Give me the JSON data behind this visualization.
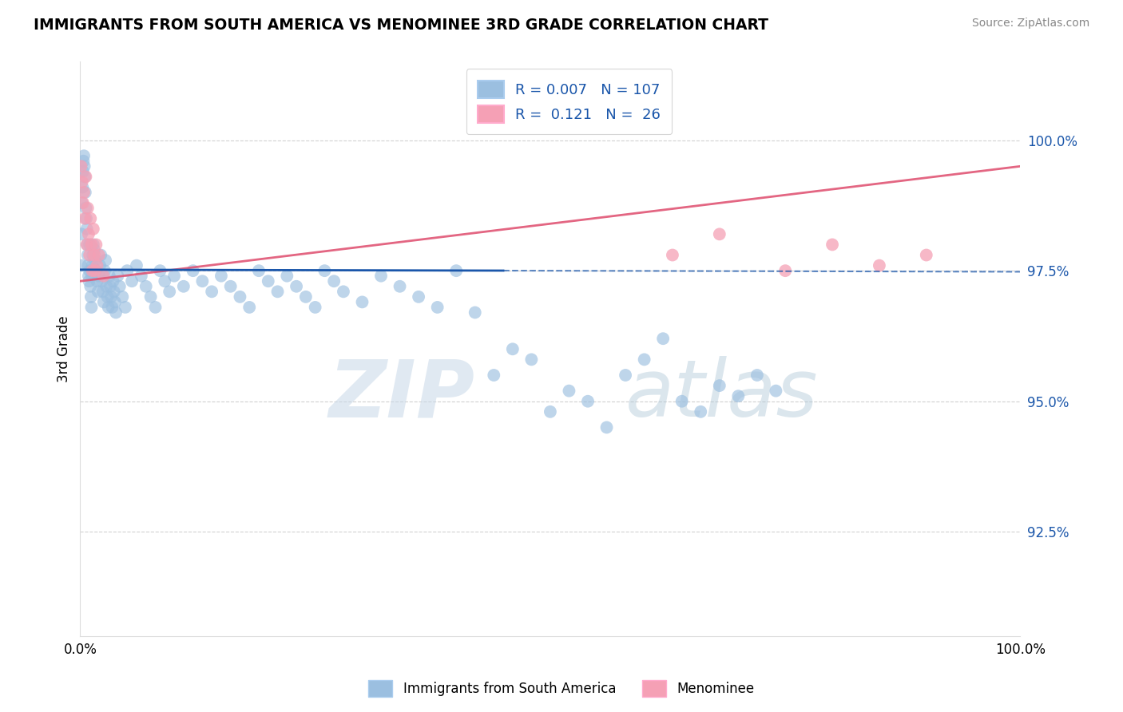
{
  "title": "IMMIGRANTS FROM SOUTH AMERICA VS MENOMINEE 3RD GRADE CORRELATION CHART",
  "source_text": "Source: ZipAtlas.com",
  "ylabel": "3rd Grade",
  "xlim": [
    0.0,
    100.0
  ],
  "ylim": [
    90.5,
    101.5
  ],
  "yticks": [
    92.5,
    95.0,
    97.5,
    100.0
  ],
  "ytick_labels": [
    "92.5%",
    "95.0%",
    "97.5%",
    "100.0%"
  ],
  "blue_R": 0.007,
  "blue_N": 107,
  "pink_R": 0.121,
  "pink_N": 26,
  "blue_color": "#9bbfe0",
  "pink_color": "#f5a0b5",
  "blue_line_color": "#1a56aa",
  "pink_line_color": "#e05575",
  "legend_blue_label": "Immigrants from South America",
  "legend_pink_label": "Menominee",
  "watermark_zip": "ZIP",
  "watermark_atlas": "atlas",
  "blue_line_y0": 97.52,
  "blue_line_y1": 97.48,
  "pink_line_y0": 97.3,
  "pink_line_y1": 99.5,
  "blue_x": [
    0.1,
    0.15,
    0.2,
    0.25,
    0.3,
    0.35,
    0.4,
    0.45,
    0.5,
    0.55,
    0.6,
    0.65,
    0.7,
    0.75,
    0.8,
    0.85,
    0.9,
    0.95,
    1.0,
    1.0,
    1.1,
    1.15,
    1.2,
    1.25,
    1.3,
    1.35,
    1.4,
    1.5,
    1.6,
    1.7,
    1.8,
    1.9,
    2.0,
    2.1,
    2.2,
    2.3,
    2.4,
    2.5,
    2.6,
    2.7,
    2.8,
    2.9,
    3.0,
    3.1,
    3.2,
    3.3,
    3.4,
    3.5,
    3.6,
    3.7,
    3.8,
    4.0,
    4.2,
    4.5,
    4.8,
    5.0,
    5.5,
    6.0,
    6.5,
    7.0,
    7.5,
    8.0,
    8.5,
    9.0,
    9.5,
    10.0,
    11.0,
    12.0,
    13.0,
    14.0,
    15.0,
    16.0,
    17.0,
    18.0,
    19.0,
    20.0,
    21.0,
    22.0,
    23.0,
    24.0,
    25.0,
    26.0,
    27.0,
    28.0,
    30.0,
    32.0,
    34.0,
    36.0,
    38.0,
    40.0,
    42.0,
    44.0,
    46.0,
    48.0,
    50.0,
    52.0,
    54.0,
    56.0,
    58.0,
    60.0,
    62.0,
    64.0,
    66.0,
    68.0,
    70.0,
    72.0,
    74.0
  ],
  "blue_y": [
    97.6,
    98.2,
    98.8,
    99.1,
    99.4,
    99.6,
    99.7,
    99.5,
    99.3,
    99.0,
    98.7,
    98.5,
    98.3,
    98.0,
    97.8,
    97.6,
    97.4,
    97.3,
    97.5,
    98.0,
    97.2,
    97.0,
    96.8,
    97.4,
    97.6,
    97.8,
    98.0,
    97.9,
    97.7,
    97.5,
    97.3,
    97.1,
    97.4,
    97.6,
    97.8,
    97.3,
    97.1,
    96.9,
    97.5,
    97.7,
    97.2,
    97.0,
    96.8,
    97.4,
    97.2,
    97.0,
    96.8,
    97.3,
    97.1,
    96.9,
    96.7,
    97.4,
    97.2,
    97.0,
    96.8,
    97.5,
    97.3,
    97.6,
    97.4,
    97.2,
    97.0,
    96.8,
    97.5,
    97.3,
    97.1,
    97.4,
    97.2,
    97.5,
    97.3,
    97.1,
    97.4,
    97.2,
    97.0,
    96.8,
    97.5,
    97.3,
    97.1,
    97.4,
    97.2,
    97.0,
    96.8,
    97.5,
    97.3,
    97.1,
    96.9,
    97.4,
    97.2,
    97.0,
    96.8,
    97.5,
    96.7,
    95.5,
    96.0,
    95.8,
    94.8,
    95.2,
    95.0,
    94.5,
    95.5,
    95.8,
    96.2,
    95.0,
    94.8,
    95.3,
    95.1,
    95.5,
    95.2
  ],
  "pink_x": [
    0.1,
    0.2,
    0.3,
    0.4,
    0.5,
    0.6,
    0.7,
    0.8,
    0.9,
    1.0,
    1.1,
    1.2,
    1.3,
    1.4,
    1.5,
    1.6,
    1.7,
    1.8,
    2.0,
    2.5,
    63.0,
    68.0,
    75.0,
    80.0,
    85.0,
    90.0
  ],
  "pink_y": [
    99.5,
    99.2,
    98.8,
    99.0,
    98.5,
    99.3,
    98.0,
    98.7,
    98.2,
    97.8,
    98.5,
    98.0,
    97.5,
    98.3,
    97.8,
    97.5,
    98.0,
    97.6,
    97.8,
    97.4,
    97.8,
    98.2,
    97.5,
    98.0,
    97.6,
    97.8
  ]
}
